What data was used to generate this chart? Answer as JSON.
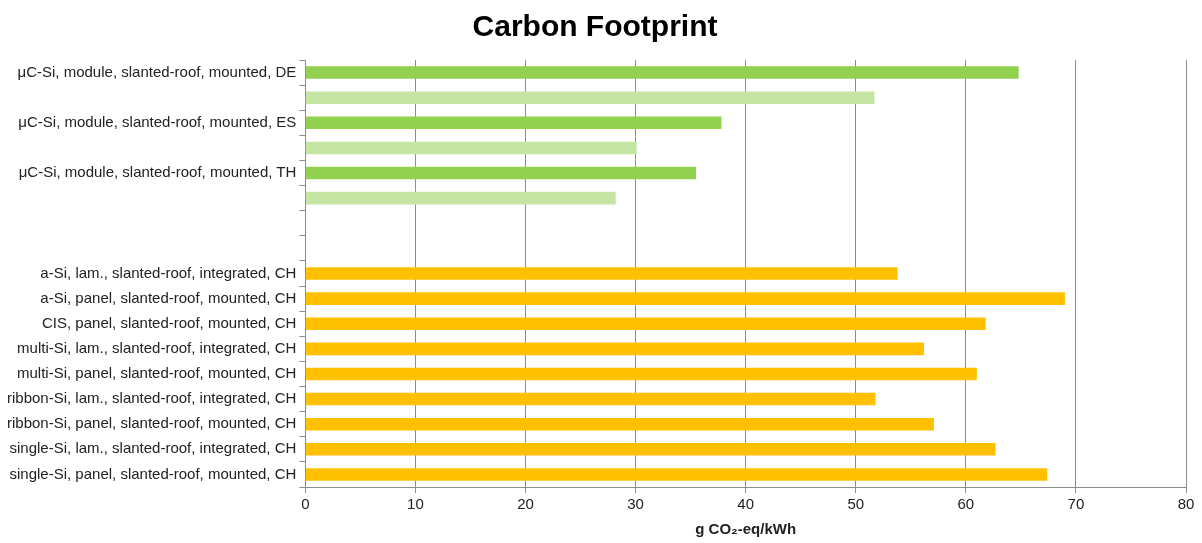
{
  "chart_data": {
    "type": "bar",
    "orientation": "horizontal",
    "title": "Carbon Footprint",
    "xlabel": "g CO₂-eq/kWh",
    "categories": [
      "μC-Si, module, slanted-roof, mounted, DE",
      null,
      "μC-Si, module, slanted-roof, mounted, ES",
      null,
      "μC-Si, module, slanted-roof, mounted, TH",
      null,
      null,
      null,
      "a-Si, lam., slanted-roof, integrated, CH",
      "a-Si, panel, slanted-roof, mounted, CH",
      "CIS, panel, slanted-roof, mounted, CH",
      "multi-Si, lam., slanted-roof, integrated, CH",
      "multi-Si, panel, slanted-roof, mounted, CH",
      "ribbon-Si, lam., slanted-roof, integrated, CH",
      "ribbon-Si, panel, slanted-roof, mounted, CH",
      "single-Si, lam., slanted-roof, integrated, CH",
      "single-Si, panel, slanted-roof, mounted, CH"
    ],
    "values": [
      64.8,
      51.7,
      37.8,
      30.1,
      35.5,
      28.2,
      null,
      null,
      53.8,
      69.0,
      61.8,
      56.2,
      61.0,
      51.8,
      57.1,
      62.7,
      67.4
    ],
    "colors": [
      "#92d050",
      "#c5e6a3",
      "#92d050",
      "#c5e6a3",
      "#92d050",
      "#c5e6a3",
      "#92d050",
      "#92d050",
      "#ffc000",
      "#ffc000",
      "#ffc000",
      "#ffc000",
      "#ffc000",
      "#ffc000",
      "#ffc000",
      "#ffc000",
      "#ffc000"
    ],
    "xlim": [
      0,
      80
    ],
    "xticks": [
      0,
      10,
      20,
      30,
      40,
      50,
      60,
      70,
      80
    ],
    "grid": "x",
    "legend": false
  }
}
